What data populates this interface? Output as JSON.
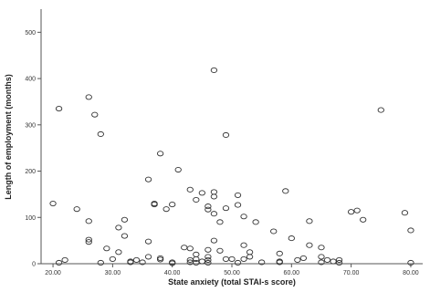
{
  "chart_data": {
    "type": "scatter",
    "xlabel": "State anxiety (total STAI-s score)",
    "ylabel": "Length of employment (months)",
    "xlim": [
      18,
      82
    ],
    "ylim": [
      0,
      550
    ],
    "xticks": [
      20,
      30,
      40,
      50,
      60,
      70,
      80
    ],
    "xtick_labels": [
      "20.00",
      "30.00",
      "40.00",
      "50.00",
      "60.00",
      "70.00",
      "80.00"
    ],
    "yticks": [
      0,
      100,
      200,
      300,
      400,
      500
    ],
    "ytick_labels": [
      "0",
      "100",
      "200",
      "300",
      "400",
      "500"
    ],
    "marker": "hollow-circle",
    "colors": {
      "marker": "#333333",
      "axis": "#555555"
    },
    "points": [
      [
        20,
        130
      ],
      [
        21,
        335
      ],
      [
        21,
        2
      ],
      [
        22,
        8
      ],
      [
        24,
        118
      ],
      [
        26,
        92
      ],
      [
        26,
        52
      ],
      [
        26,
        47
      ],
      [
        26,
        360
      ],
      [
        27,
        322
      ],
      [
        28,
        280
      ],
      [
        28,
        2
      ],
      [
        29,
        33
      ],
      [
        30,
        10
      ],
      [
        31,
        78
      ],
      [
        31,
        25
      ],
      [
        32,
        60
      ],
      [
        32,
        95
      ],
      [
        33,
        5
      ],
      [
        33,
        3
      ],
      [
        34,
        8
      ],
      [
        35,
        3
      ],
      [
        36,
        182
      ],
      [
        36,
        48
      ],
      [
        36,
        15
      ],
      [
        37,
        130
      ],
      [
        37,
        128
      ],
      [
        38,
        238
      ],
      [
        38,
        12
      ],
      [
        38,
        9
      ],
      [
        39,
        118
      ],
      [
        40,
        128
      ],
      [
        40,
        3
      ],
      [
        40,
        1
      ],
      [
        41,
        203
      ],
      [
        42,
        35
      ],
      [
        43,
        160
      ],
      [
        43,
        33
      ],
      [
        43,
        8
      ],
      [
        43,
        3
      ],
      [
        44,
        138
      ],
      [
        44,
        20
      ],
      [
        44,
        10
      ],
      [
        44,
        2
      ],
      [
        45,
        153
      ],
      [
        45,
        5
      ],
      [
        46,
        124
      ],
      [
        46,
        117
      ],
      [
        46,
        30
      ],
      [
        46,
        15
      ],
      [
        46,
        8
      ],
      [
        46,
        2
      ],
      [
        47,
        418
      ],
      [
        47,
        155
      ],
      [
        47,
        145
      ],
      [
        47,
        108
      ],
      [
        47,
        50
      ],
      [
        48,
        90
      ],
      [
        48,
        28
      ],
      [
        49,
        278
      ],
      [
        49,
        120
      ],
      [
        49,
        10
      ],
      [
        50,
        10
      ],
      [
        51,
        148
      ],
      [
        51,
        127
      ],
      [
        51,
        2
      ],
      [
        52,
        102
      ],
      [
        52,
        40
      ],
      [
        52,
        10
      ],
      [
        53,
        25
      ],
      [
        53,
        15
      ],
      [
        54,
        90
      ],
      [
        55,
        3
      ],
      [
        57,
        70
      ],
      [
        58,
        22
      ],
      [
        58,
        5
      ],
      [
        58,
        3
      ],
      [
        59,
        157
      ],
      [
        60,
        55
      ],
      [
        61,
        8
      ],
      [
        62,
        12
      ],
      [
        63,
        92
      ],
      [
        63,
        40
      ],
      [
        65,
        35
      ],
      [
        65,
        15
      ],
      [
        65,
        3
      ],
      [
        66,
        8
      ],
      [
        67,
        5
      ],
      [
        68,
        8
      ],
      [
        68,
        2
      ],
      [
        70,
        112
      ],
      [
        71,
        115
      ],
      [
        72,
        95
      ],
      [
        75,
        332
      ],
      [
        79,
        110
      ],
      [
        80,
        72
      ],
      [
        80,
        2
      ]
    ]
  }
}
